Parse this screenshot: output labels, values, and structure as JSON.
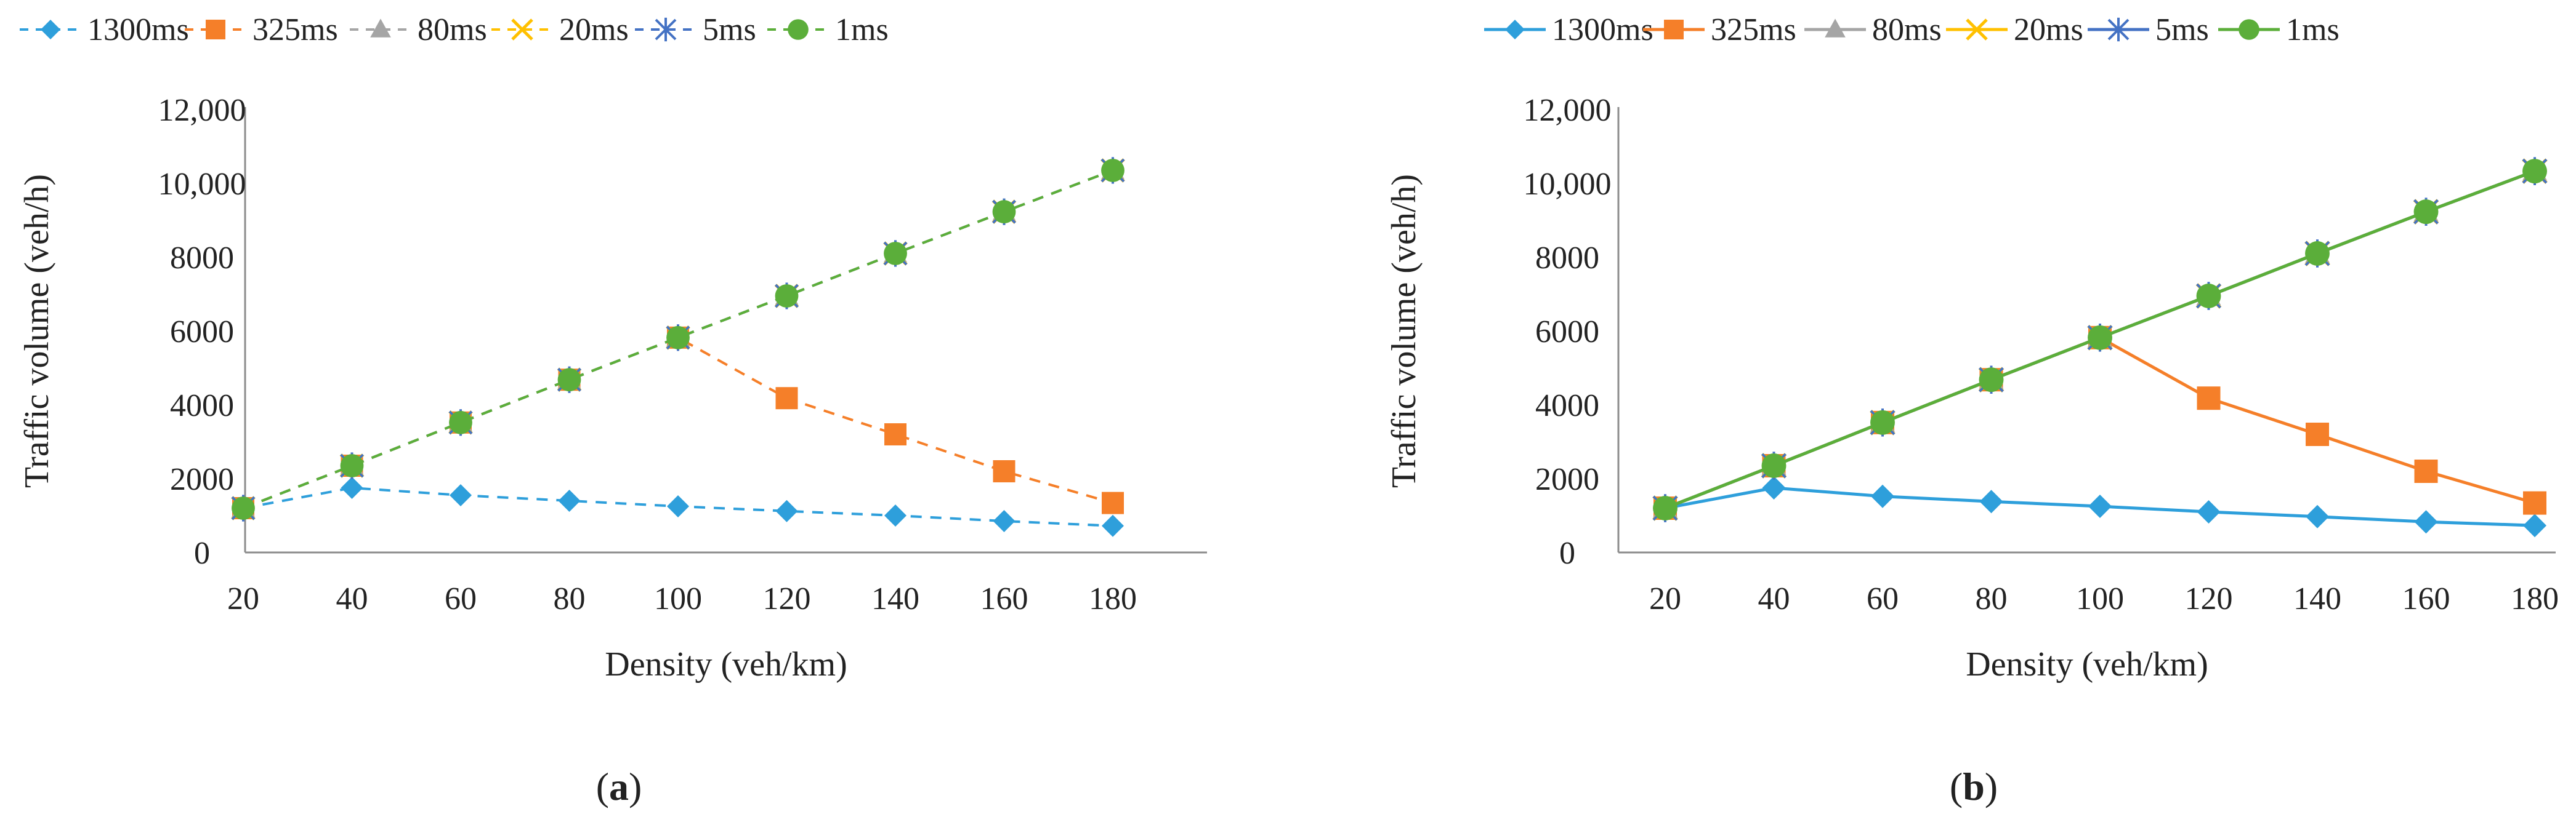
{
  "chart_data": [
    {
      "panel": "a",
      "caption_letter": "a",
      "caption_open": "(",
      "caption_close": ")",
      "type": "line",
      "line_style": "dashed",
      "xlabel": "Density (veh/km)",
      "ylabel": "Traffic volume (veh/h)",
      "categories": [
        20,
        40,
        60,
        80,
        100,
        120,
        140,
        160,
        180
      ],
      "ylim": [
        0,
        12000
      ],
      "y_ticks": [
        0,
        2000,
        4000,
        6000,
        8000,
        10000,
        12000
      ],
      "y_tick_labels": [
        "0",
        "2000",
        "4000",
        "6000",
        "8000",
        "10,000",
        "12,000"
      ],
      "x_tick_labels": [
        "20",
        "40",
        "60",
        "80",
        "100",
        "120",
        "140",
        "160",
        "180"
      ],
      "legend_position": "top",
      "series": [
        {
          "name": "1300ms",
          "color": "#2E9FDB",
          "marker": "diamond",
          "values": [
            1200,
            1750,
            1550,
            1400,
            1250,
            1120,
            1000,
            850,
            720
          ]
        },
        {
          "name": "325ms",
          "color": "#F57F29",
          "marker": "square",
          "values": [
            1200,
            2350,
            3520,
            4680,
            5820,
            4180,
            3200,
            2200,
            1340
          ]
        },
        {
          "name": "80ms",
          "color": "#A5A5A5",
          "marker": "triangle",
          "values": [
            1200,
            2350,
            3520,
            4680,
            5820,
            6950,
            8100,
            9230,
            10350
          ]
        },
        {
          "name": "20ms",
          "color": "#FFC000",
          "marker": "x",
          "values": [
            1200,
            2350,
            3520,
            4680,
            5820,
            6950,
            8100,
            9230,
            10350
          ]
        },
        {
          "name": "5ms",
          "color": "#4472C4",
          "marker": "star",
          "values": [
            1200,
            2350,
            3520,
            4680,
            5820,
            6950,
            8100,
            9230,
            10350
          ]
        },
        {
          "name": "1ms",
          "color": "#5BAE3A",
          "marker": "circle",
          "values": [
            1200,
            2350,
            3520,
            4680,
            5820,
            6950,
            8100,
            9230,
            10350
          ]
        }
      ]
    },
    {
      "panel": "b",
      "caption_letter": "b",
      "caption_open": "(",
      "caption_close": ")",
      "type": "line",
      "line_style": "solid",
      "xlabel": "Density (veh/km)",
      "ylabel": "Traffic volume (veh/h)",
      "categories": [
        20,
        40,
        60,
        80,
        100,
        120,
        140,
        160,
        180
      ],
      "ylim": [
        0,
        12000
      ],
      "y_ticks": [
        0,
        2000,
        4000,
        6000,
        8000,
        10000,
        12000
      ],
      "y_tick_labels": [
        "0",
        "2000",
        "4000",
        "6000",
        "8000",
        "10,000",
        "12,000"
      ],
      "x_tick_labels": [
        "20",
        "40",
        "60",
        "80",
        "100",
        "120",
        "140",
        "160",
        "180"
      ],
      "legend_position": "top",
      "series": [
        {
          "name": "1300ms",
          "color": "#2E9FDB",
          "marker": "diamond",
          "values": [
            1200,
            1750,
            1520,
            1380,
            1250,
            1100,
            970,
            830,
            730
          ]
        },
        {
          "name": "325ms",
          "color": "#F57F29",
          "marker": "square",
          "values": [
            1200,
            2350,
            3520,
            4680,
            5820,
            4180,
            3200,
            2200,
            1340
          ]
        },
        {
          "name": "80ms",
          "color": "#A5A5A5",
          "marker": "triangle",
          "values": [
            1200,
            2350,
            3520,
            4680,
            5820,
            6950,
            8100,
            9230,
            10330
          ]
        },
        {
          "name": "20ms",
          "color": "#FFC000",
          "marker": "x",
          "values": [
            1200,
            2350,
            3520,
            4680,
            5820,
            6950,
            8100,
            9230,
            10330
          ]
        },
        {
          "name": "5ms",
          "color": "#4472C4",
          "marker": "star",
          "values": [
            1200,
            2350,
            3520,
            4680,
            5820,
            6950,
            8100,
            9230,
            10330
          ]
        },
        {
          "name": "1ms",
          "color": "#5BAE3A",
          "marker": "circle",
          "values": [
            1200,
            2350,
            3520,
            4680,
            5820,
            6950,
            8100,
            9230,
            10330
          ]
        }
      ]
    }
  ]
}
